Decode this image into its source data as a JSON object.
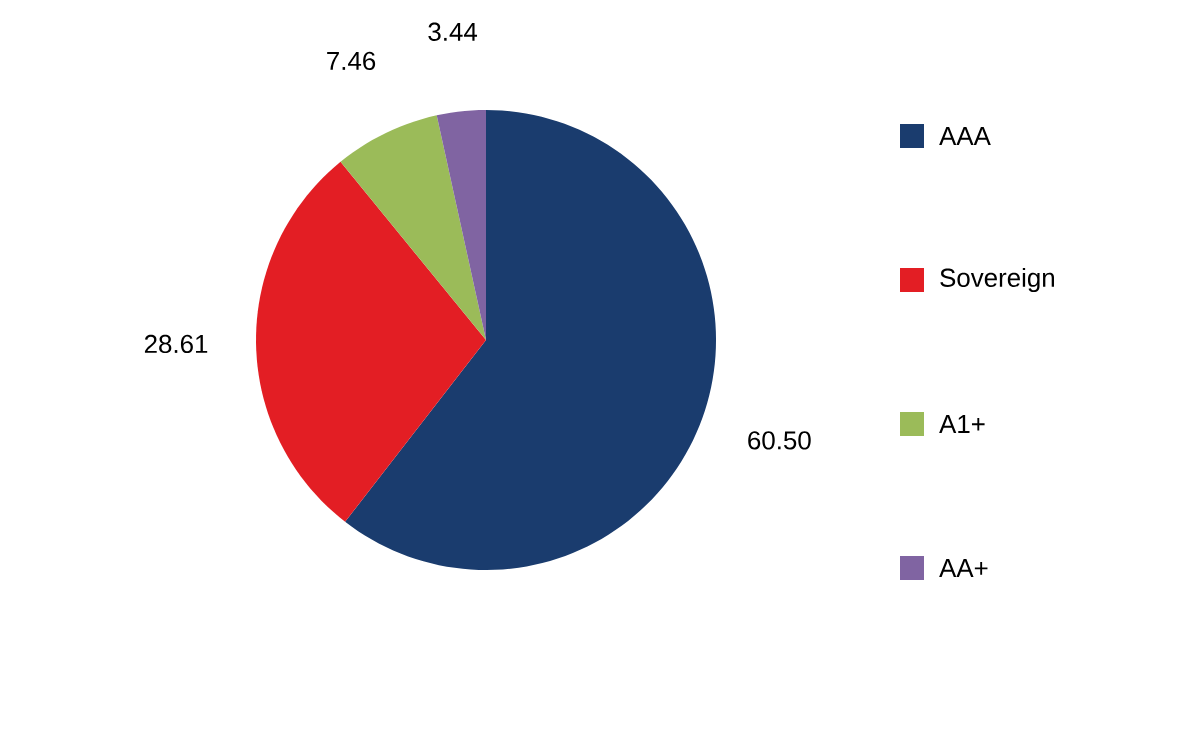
{
  "chart_data": {
    "type": "pie",
    "categories": [
      "AAA",
      "Sovereign",
      "A1+",
      "AA+"
    ],
    "values": [
      60.5,
      28.61,
      7.46,
      3.44
    ],
    "value_labels": [
      "60.50",
      "28.61",
      "7.46",
      "3.44"
    ],
    "colors": [
      "#1a3c6e",
      "#e31e24",
      "#9bbb59",
      "#8064a2"
    ],
    "legend": "right"
  }
}
